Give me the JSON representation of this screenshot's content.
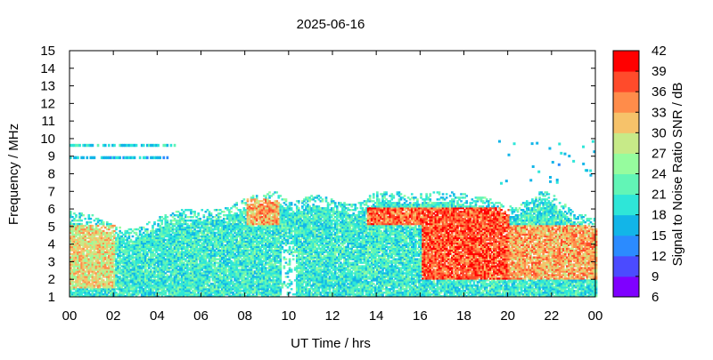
{
  "chart_data": {
    "type": "heatmap",
    "title": "2025-06-16",
    "xlabel": "UT Time / hrs",
    "ylabel": "Frequency / MHz",
    "colorbar_label": "Signal to Noise Ratio SNR / dB",
    "xlim": [
      0,
      24
    ],
    "ylim": [
      1,
      15
    ],
    "x_tick_labels": [
      "00",
      "02",
      "04",
      "06",
      "08",
      "10",
      "12",
      "14",
      "16",
      "18",
      "20",
      "22",
      "00"
    ],
    "y_ticks": [
      1,
      2,
      3,
      4,
      5,
      6,
      7,
      8,
      9,
      10,
      11,
      12,
      13,
      14,
      15
    ],
    "colorbar_ticks": [
      6,
      9,
      12,
      15,
      18,
      21,
      24,
      27,
      30,
      33,
      36,
      39,
      42
    ],
    "colorbar_colors": [
      "#7f00ff",
      "#4b4bff",
      "#2b8bff",
      "#12b5e8",
      "#2ee6d8",
      "#62f5b6",
      "#96fc9e",
      "#c7ea88",
      "#f6c26a",
      "#ff8c4a",
      "#ff4b2b",
      "#ff0000"
    ],
    "grid": false,
    "upper_frequency_envelope_mhz": {
      "hours": [
        0,
        1,
        2,
        2.5,
        3,
        4,
        5,
        6,
        7,
        8,
        9,
        9.5,
        10,
        10.5,
        11,
        12,
        13,
        14,
        15,
        16,
        17,
        18,
        19,
        20,
        21,
        21.5,
        22,
        23,
        24
      ],
      "values": [
        5.8,
        5.6,
        5.0,
        4.8,
        4.9,
        5.5,
        5.9,
        5.9,
        6.0,
        6.6,
        7.0,
        6.9,
        6.3,
        6.5,
        6.8,
        6.5,
        6.2,
        7.0,
        6.9,
        6.8,
        7.0,
        6.8,
        6.6,
        6.1,
        6.5,
        7.0,
        6.8,
        5.8,
        5.4
      ]
    },
    "high_snr_regions_db": [
      {
        "hours": [
          0,
          2
        ],
        "mhz": [
          1.5,
          5
        ],
        "snr": 33
      },
      {
        "hours": [
          8,
          9.5
        ],
        "mhz": [
          5,
          6.5
        ],
        "snr": 36
      },
      {
        "hours": [
          13.5,
          16
        ],
        "mhz": [
          5,
          6
        ],
        "snr": 39
      },
      {
        "hours": [
          16,
          20
        ],
        "mhz": [
          2,
          6
        ],
        "snr": 40
      },
      {
        "hours": [
          20,
          24
        ],
        "mhz": [
          2,
          5
        ],
        "snr": 36
      }
    ],
    "reception_gap": {
      "hours": [
        9.6,
        10.3
      ],
      "mhz": [
        1,
        4
      ]
    },
    "sparse_bands_mhz": [
      {
        "hours": [
          0,
          4.8
        ],
        "mhz": 9.6,
        "snr": 18
      },
      {
        "hours": [
          0,
          4.6
        ],
        "mhz": 8.9,
        "snr": 16
      }
    ]
  }
}
